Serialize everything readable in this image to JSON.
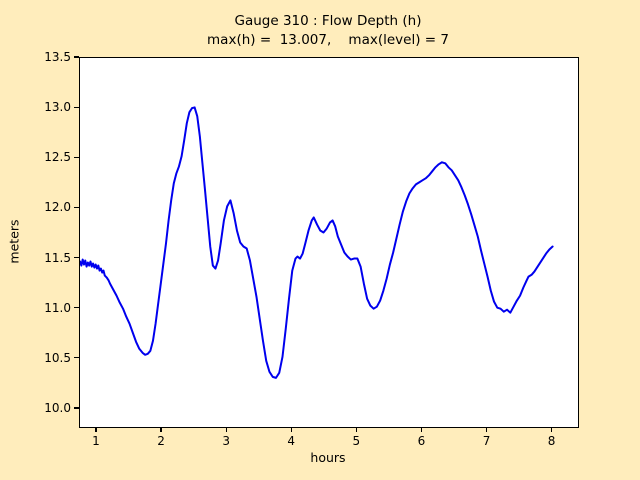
{
  "figure": {
    "background_color": "#ffedbc",
    "title_line1": "Gauge 310 : Flow Depth (h)",
    "title_line2": "max(h) =  13.007,    max(level) = 7"
  },
  "chart_data": {
    "type": "line",
    "title": "Gauge 310 : Flow Depth (h)",
    "subtitle": "max(h) =  13.007,    max(level) = 7",
    "xlabel": "hours",
    "ylabel": "meters",
    "xlim": [
      0.739,
      8.39
    ],
    "ylim": [
      9.82,
      13.5
    ],
    "x_ticks": [
      "1",
      "2",
      "3",
      "4",
      "5",
      "6",
      "7",
      "8"
    ],
    "x_tick_values": [
      1,
      2,
      3,
      4,
      5,
      6,
      7,
      8
    ],
    "y_ticks": [
      "10.0",
      "10.5",
      "11.0",
      "11.5",
      "12.0",
      "12.5",
      "13.0",
      "13.5"
    ],
    "y_tick_values": [
      10.0,
      10.5,
      11.0,
      11.5,
      12.0,
      12.5,
      13.0,
      13.5
    ],
    "grid": false,
    "legend": "none",
    "plot_background": "#ffffff",
    "line_color": "#0000ee",
    "max_h": 13.007,
    "max_level": 7,
    "series": [
      {
        "name": "flow-depth-h",
        "points": [
          [
            0.74,
            11.47
          ],
          [
            0.76,
            11.43
          ],
          [
            0.78,
            11.49
          ],
          [
            0.8,
            11.44
          ],
          [
            0.82,
            11.48
          ],
          [
            0.84,
            11.42
          ],
          [
            0.86,
            11.46
          ],
          [
            0.88,
            11.43
          ],
          [
            0.9,
            11.47
          ],
          [
            0.92,
            11.42
          ],
          [
            0.94,
            11.45
          ],
          [
            0.96,
            11.41
          ],
          [
            0.98,
            11.44
          ],
          [
            1.0,
            11.4
          ],
          [
            1.02,
            11.43
          ],
          [
            1.04,
            11.38
          ],
          [
            1.06,
            11.4
          ],
          [
            1.08,
            11.36
          ],
          [
            1.1,
            11.38
          ],
          [
            1.12,
            11.33
          ],
          [
            1.15,
            11.31
          ],
          [
            1.18,
            11.28
          ],
          [
            1.2,
            11.25
          ],
          [
            1.25,
            11.19
          ],
          [
            1.3,
            11.13
          ],
          [
            1.35,
            11.06
          ],
          [
            1.4,
            11.0
          ],
          [
            1.45,
            10.92
          ],
          [
            1.5,
            10.85
          ],
          [
            1.55,
            10.76
          ],
          [
            1.6,
            10.67
          ],
          [
            1.65,
            10.6
          ],
          [
            1.7,
            10.56
          ],
          [
            1.74,
            10.54
          ],
          [
            1.78,
            10.55
          ],
          [
            1.82,
            10.58
          ],
          [
            1.86,
            10.68
          ],
          [
            1.9,
            10.85
          ],
          [
            1.94,
            11.05
          ],
          [
            1.98,
            11.25
          ],
          [
            2.02,
            11.45
          ],
          [
            2.06,
            11.65
          ],
          [
            2.1,
            11.88
          ],
          [
            2.14,
            12.08
          ],
          [
            2.18,
            12.25
          ],
          [
            2.22,
            12.35
          ],
          [
            2.26,
            12.42
          ],
          [
            2.3,
            12.52
          ],
          [
            2.34,
            12.68
          ],
          [
            2.38,
            12.85
          ],
          [
            2.42,
            12.96
          ],
          [
            2.46,
            13.0
          ],
          [
            2.5,
            13.007
          ],
          [
            2.54,
            12.92
          ],
          [
            2.58,
            12.72
          ],
          [
            2.62,
            12.45
          ],
          [
            2.66,
            12.18
          ],
          [
            2.7,
            11.9
          ],
          [
            2.74,
            11.62
          ],
          [
            2.78,
            11.43
          ],
          [
            2.82,
            11.4
          ],
          [
            2.86,
            11.48
          ],
          [
            2.9,
            11.65
          ],
          [
            2.95,
            11.88
          ],
          [
            3.0,
            12.02
          ],
          [
            3.05,
            12.08
          ],
          [
            3.1,
            11.95
          ],
          [
            3.15,
            11.78
          ],
          [
            3.2,
            11.66
          ],
          [
            3.25,
            11.62
          ],
          [
            3.3,
            11.6
          ],
          [
            3.35,
            11.48
          ],
          [
            3.4,
            11.3
          ],
          [
            3.45,
            11.12
          ],
          [
            3.5,
            10.9
          ],
          [
            3.55,
            10.68
          ],
          [
            3.6,
            10.48
          ],
          [
            3.65,
            10.37
          ],
          [
            3.7,
            10.32
          ],
          [
            3.75,
            10.31
          ],
          [
            3.8,
            10.36
          ],
          [
            3.85,
            10.52
          ],
          [
            3.9,
            10.8
          ],
          [
            3.95,
            11.1
          ],
          [
            4.0,
            11.38
          ],
          [
            4.05,
            11.5
          ],
          [
            4.08,
            11.52
          ],
          [
            4.12,
            11.5
          ],
          [
            4.16,
            11.55
          ],
          [
            4.2,
            11.65
          ],
          [
            4.25,
            11.78
          ],
          [
            4.3,
            11.88
          ],
          [
            4.33,
            11.91
          ],
          [
            4.38,
            11.84
          ],
          [
            4.43,
            11.78
          ],
          [
            4.48,
            11.76
          ],
          [
            4.53,
            11.8
          ],
          [
            4.58,
            11.86
          ],
          [
            4.62,
            11.88
          ],
          [
            4.66,
            11.82
          ],
          [
            4.7,
            11.72
          ],
          [
            4.75,
            11.64
          ],
          [
            4.8,
            11.56
          ],
          [
            4.85,
            11.52
          ],
          [
            4.9,
            11.49
          ],
          [
            4.95,
            11.5
          ],
          [
            5.0,
            11.5
          ],
          [
            5.05,
            11.42
          ],
          [
            5.1,
            11.25
          ],
          [
            5.15,
            11.1
          ],
          [
            5.2,
            11.03
          ],
          [
            5.25,
            11.0
          ],
          [
            5.3,
            11.02
          ],
          [
            5.35,
            11.08
          ],
          [
            5.4,
            11.18
          ],
          [
            5.45,
            11.3
          ],
          [
            5.5,
            11.44
          ],
          [
            5.55,
            11.56
          ],
          [
            5.6,
            11.7
          ],
          [
            5.65,
            11.84
          ],
          [
            5.7,
            11.97
          ],
          [
            5.75,
            12.07
          ],
          [
            5.8,
            12.15
          ],
          [
            5.85,
            12.2
          ],
          [
            5.9,
            12.24
          ],
          [
            5.95,
            12.26
          ],
          [
            6.0,
            12.28
          ],
          [
            6.05,
            12.3
          ],
          [
            6.1,
            12.33
          ],
          [
            6.15,
            12.37
          ],
          [
            6.2,
            12.41
          ],
          [
            6.25,
            12.44
          ],
          [
            6.3,
            12.46
          ],
          [
            6.35,
            12.45
          ],
          [
            6.4,
            12.41
          ],
          [
            6.45,
            12.38
          ],
          [
            6.5,
            12.33
          ],
          [
            6.55,
            12.28
          ],
          [
            6.6,
            12.21
          ],
          [
            6.65,
            12.13
          ],
          [
            6.7,
            12.04
          ],
          [
            6.75,
            11.94
          ],
          [
            6.8,
            11.83
          ],
          [
            6.85,
            11.72
          ],
          [
            6.9,
            11.58
          ],
          [
            6.95,
            11.45
          ],
          [
            7.0,
            11.32
          ],
          [
            7.05,
            11.18
          ],
          [
            7.1,
            11.07
          ],
          [
            7.15,
            11.01
          ],
          [
            7.2,
            11.0
          ],
          [
            7.25,
            10.97
          ],
          [
            7.3,
            10.99
          ],
          [
            7.35,
            10.96
          ],
          [
            7.4,
            11.02
          ],
          [
            7.45,
            11.08
          ],
          [
            7.5,
            11.13
          ],
          [
            7.55,
            11.21
          ],
          [
            7.6,
            11.28
          ],
          [
            7.63,
            11.32
          ],
          [
            7.68,
            11.34
          ],
          [
            7.72,
            11.37
          ],
          [
            7.76,
            11.41
          ],
          [
            7.8,
            11.45
          ],
          [
            7.85,
            11.5
          ],
          [
            7.9,
            11.55
          ],
          [
            7.95,
            11.59
          ],
          [
            8.0,
            11.62
          ]
        ]
      }
    ]
  }
}
